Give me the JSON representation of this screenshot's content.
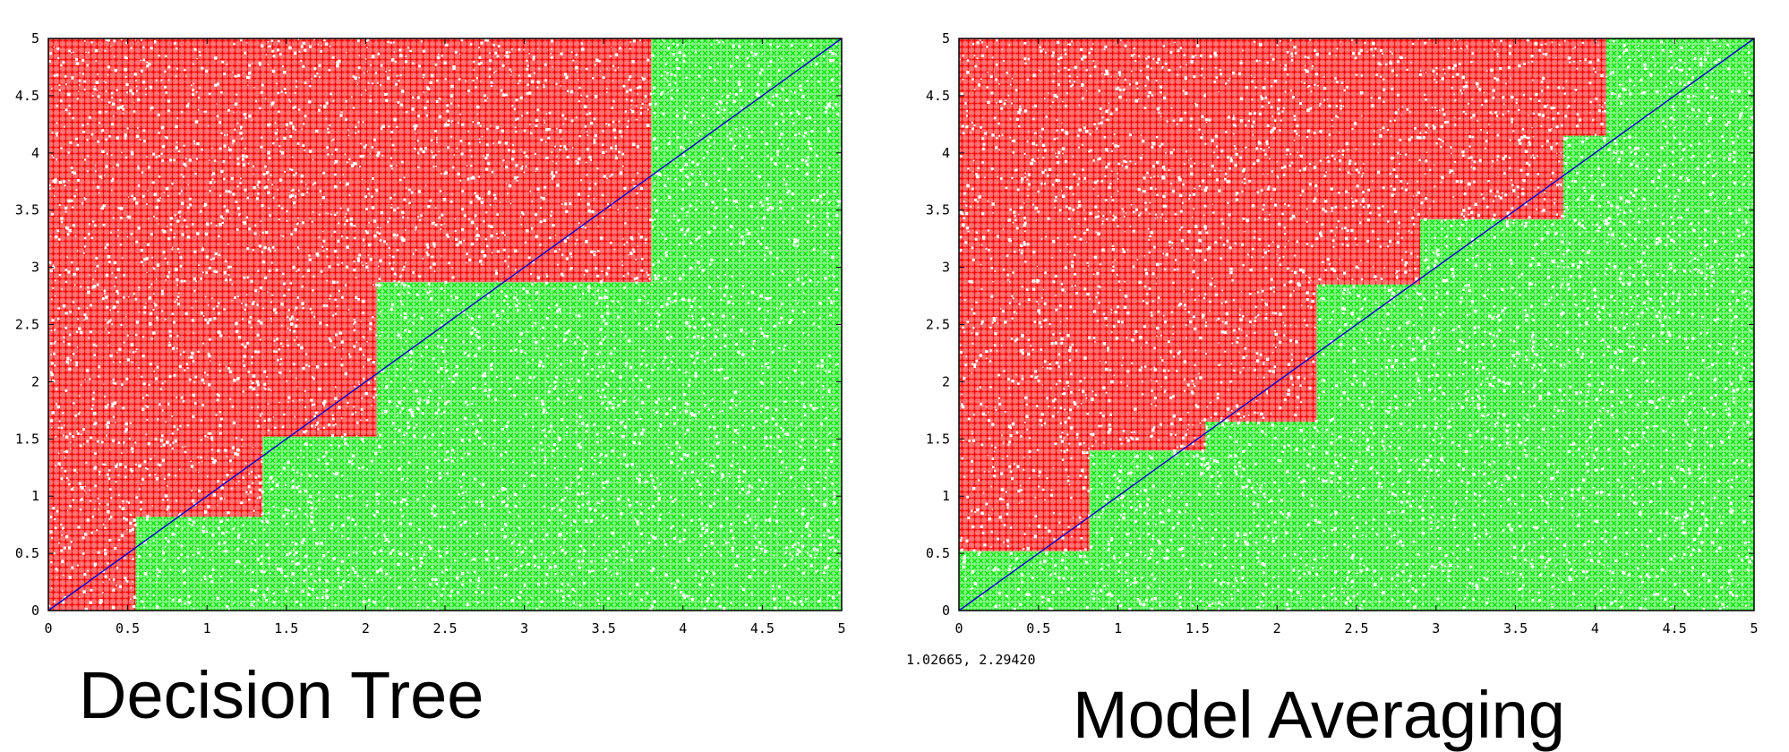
{
  "chart_data": [
    {
      "type": "scatter",
      "title": "Decision Tree",
      "xlabel": "",
      "ylabel": "",
      "xlim": [
        0,
        5
      ],
      "ylim": [
        0,
        5
      ],
      "xticks": [
        "0",
        "0.5",
        "1",
        "1.5",
        "2",
        "2.5",
        "3",
        "3.5",
        "4",
        "4.5",
        "5"
      ],
      "yticks": [
        "0",
        "0.5",
        "1",
        "1.5",
        "2",
        "2.5",
        "3",
        "3.5",
        "4",
        "4.5",
        "5"
      ],
      "grid": false,
      "diagonal": {
        "from": [
          0,
          0
        ],
        "to": [
          5,
          5
        ],
        "color": "#0000cc"
      },
      "regions": [
        {
          "class_color": "#ff0000",
          "x": [
            0,
            0.55
          ],
          "y": [
            0,
            5
          ]
        },
        {
          "class_color": "#ff0000",
          "x": [
            0.55,
            1.35
          ],
          "y": [
            0.82,
            5
          ]
        },
        {
          "class_color": "#ff0000",
          "x": [
            1.35,
            2.07
          ],
          "y": [
            1.52,
            5
          ]
        },
        {
          "class_color": "#ff0000",
          "x": [
            2.07,
            3.8
          ],
          "y": [
            2.87,
            5
          ]
        },
        {
          "class_color": "#00ee00",
          "x": [
            0.55,
            1.35
          ],
          "y": [
            0,
            0.82
          ]
        },
        {
          "class_color": "#00ee00",
          "x": [
            1.35,
            2.07
          ],
          "y": [
            0,
            1.52
          ]
        },
        {
          "class_color": "#00ee00",
          "x": [
            2.07,
            3.8
          ],
          "y": [
            0,
            2.87
          ]
        },
        {
          "class_color": "#00ee00",
          "x": [
            3.8,
            5
          ],
          "y": [
            0,
            5
          ]
        }
      ]
    },
    {
      "type": "scatter",
      "title": "Model Averaging",
      "xlabel": "",
      "ylabel": "",
      "xlim": [
        0,
        5
      ],
      "ylim": [
        0,
        5
      ],
      "xticks": [
        "0",
        "0.5",
        "1",
        "1.5",
        "2",
        "2.5",
        "3",
        "3.5",
        "4",
        "4.5",
        "5"
      ],
      "yticks": [
        "0",
        "0.5",
        "1",
        "1.5",
        "2",
        "2.5",
        "3",
        "3.5",
        "4",
        "4.5",
        "5"
      ],
      "grid": false,
      "coordinate_readout": "1.02665, 2.29420",
      "diagonal": {
        "from": [
          0,
          0
        ],
        "to": [
          5,
          5
        ],
        "color": "#0000cc"
      },
      "regions": [
        {
          "class_color": "#ff0000",
          "x": [
            0,
            0.82
          ],
          "y": [
            0.52,
            5
          ]
        },
        {
          "class_color": "#ff0000",
          "x": [
            0.82,
            1.55
          ],
          "y": [
            1.4,
            5
          ]
        },
        {
          "class_color": "#ff0000",
          "x": [
            1.55,
            2.25
          ],
          "y": [
            1.65,
            5
          ]
        },
        {
          "class_color": "#ff0000",
          "x": [
            2.25,
            2.9
          ],
          "y": [
            2.85,
            5
          ]
        },
        {
          "class_color": "#ff0000",
          "x": [
            2.9,
            3.8
          ],
          "y": [
            3.42,
            5
          ]
        },
        {
          "class_color": "#ff0000",
          "x": [
            3.8,
            4.07
          ],
          "y": [
            4.15,
            5
          ]
        },
        {
          "class_color": "#00ee00",
          "x": [
            0,
            0.82
          ],
          "y": [
            0,
            0.52
          ]
        },
        {
          "class_color": "#00ee00",
          "x": [
            0.82,
            1.55
          ],
          "y": [
            0,
            1.4
          ]
        },
        {
          "class_color": "#00ee00",
          "x": [
            1.55,
            2.25
          ],
          "y": [
            0,
            1.65
          ]
        },
        {
          "class_color": "#00ee00",
          "x": [
            2.25,
            2.9
          ],
          "y": [
            0,
            2.85
          ]
        },
        {
          "class_color": "#00ee00",
          "x": [
            2.9,
            3.8
          ],
          "y": [
            0,
            3.42
          ]
        },
        {
          "class_color": "#00ee00",
          "x": [
            3.8,
            4.07
          ],
          "y": [
            0,
            4.15
          ]
        },
        {
          "class_color": "#00ee00",
          "x": [
            4.07,
            5
          ],
          "y": [
            0,
            5
          ]
        }
      ]
    }
  ]
}
